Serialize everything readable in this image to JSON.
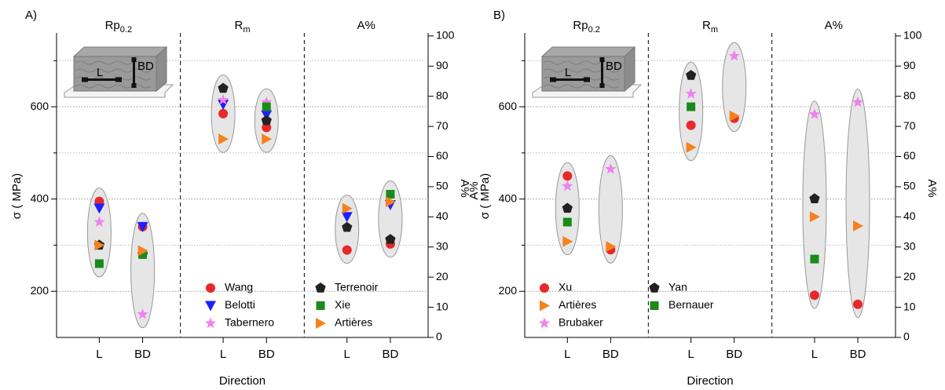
{
  "chart_data": [
    {
      "type": "scatter",
      "panel_label": "A)",
      "xlabel": "Direction",
      "ylabel": "σ ( MPa)",
      "y2label": "A%",
      "sections": [
        {
          "label": "Rp",
          "subscript": "0.2",
          "axis": "y"
        },
        {
          "label": "R",
          "subscript": "m",
          "axis": "y"
        },
        {
          "label": "A%",
          "axis": "y2"
        }
      ],
      "categories": [
        "L",
        "BD"
      ],
      "ylim": [
        100,
        760
      ],
      "yticks": [
        200,
        400,
        600
      ],
      "minor_yticks": [
        300,
        500,
        700
      ],
      "y2lim": [
        0,
        101
      ],
      "y2ticks": [
        0,
        10,
        20,
        30,
        40,
        50,
        60,
        70,
        80,
        90,
        100
      ],
      "grid": true,
      "legend": "lower center",
      "inset_labels": [
        "L",
        "BD"
      ],
      "series": [
        {
          "name": "Wang",
          "color": "#e8282a",
          "marker": "circle",
          "values": [
            395,
            340,
            585,
            555,
            29,
            31
          ]
        },
        {
          "name": "Belotti",
          "color": "#1f1fff",
          "marker": "triangle-down",
          "values": [
            380,
            340,
            605,
            582,
            40,
            44
          ]
        },
        {
          "name": "Tabernero",
          "color": "#ee82ee",
          "marker": "star",
          "values": [
            350,
            150,
            615,
            610,
            null,
            null
          ]
        },
        {
          "name": "Terrenoir",
          "color": "#222222",
          "marker": "pentagon",
          "values": [
            300,
            280,
            640,
            570,
            36.5,
            32.5
          ]
        },
        {
          "name": "Xie",
          "color": "#1a8a1a",
          "marker": "square",
          "values": [
            260,
            280,
            null,
            600,
            null,
            47.5
          ]
        },
        {
          "name": "Artières",
          "color": "#f5821f",
          "marker": "triangle-right",
          "values": [
            300,
            288,
            530,
            530,
            42.8,
            45
          ]
        }
      ]
    },
    {
      "type": "scatter",
      "panel_label": "B)",
      "xlabel": "Direction",
      "ylabel": "σ ( MPa)",
      "ylabel_overlay": "A%",
      "y2label": "A%",
      "sections": [
        {
          "label": "Rp",
          "subscript": "0.2",
          "axis": "y"
        },
        {
          "label": "R",
          "subscript": "m",
          "axis": "y"
        },
        {
          "label": "A%",
          "axis": "y2"
        }
      ],
      "categories": [
        "L",
        "BD"
      ],
      "ylim": [
        100,
        760
      ],
      "yticks": [
        200,
        400,
        600
      ],
      "minor_yticks": [
        300,
        500,
        700
      ],
      "y2lim": [
        0,
        101
      ],
      "y2ticks": [
        0,
        10,
        20,
        30,
        40,
        50,
        60,
        70,
        80,
        90,
        100
      ],
      "grid": true,
      "legend": "lower left",
      "inset_labels": [
        "L",
        "BD"
      ],
      "series": [
        {
          "name": "Xu",
          "color": "#e8282a",
          "marker": "circle",
          "values": [
            450,
            290,
            560,
            575,
            14,
            11
          ]
        },
        {
          "name": "Artières",
          "color": "#f5821f",
          "marker": "triangle-right",
          "values": [
            308,
            297,
            512,
            580,
            40,
            37
          ]
        },
        {
          "name": "Brubaker",
          "color": "#ee82ee",
          "marker": "star",
          "values": [
            428,
            465,
            628,
            710,
            74,
            78
          ]
        },
        {
          "name": "Yan",
          "color": "#222222",
          "marker": "pentagon",
          "values": [
            380,
            null,
            668,
            null,
            46,
            null
          ]
        },
        {
          "name": "Bernauer",
          "color": "#1a8a1a",
          "marker": "square",
          "values": [
            350,
            null,
            600,
            null,
            26,
            null
          ]
        }
      ]
    }
  ]
}
